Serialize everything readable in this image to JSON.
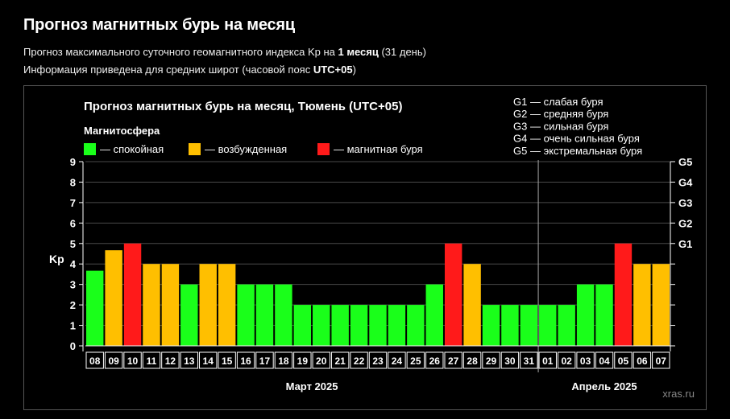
{
  "page": {
    "title": "Прогноз магнитных бурь на месяц",
    "info1_pre": "Прогноз максимального суточного геомагнитного индекса Kp на ",
    "info1_bold": "1 месяц",
    "info1_post": " (31 день)",
    "info2_pre": "Информация приведена для средних широт (часовой пояс ",
    "info2_bold": "UTC+05",
    "info2_post": ")"
  },
  "chart_data": {
    "type": "bar",
    "title": "Прогноз магнитных бурь на месяц, Тюмень (UTC+05)",
    "legend_title": "Магнитосфера",
    "legend": [
      {
        "key": "calm",
        "label": "— спокойная",
        "color": "#1aff1a"
      },
      {
        "key": "excited",
        "label": "— возбужденная",
        "color": "#ffbf00"
      },
      {
        "key": "storm",
        "label": "— магнитная буря",
        "color": "#ff1a1a"
      }
    ],
    "g_scale": [
      "G1 — слабая буря",
      "G2 — средняя буря",
      "G3 — сильная буря",
      "G4 — очень сильная буря",
      "G5 — экстремальная буря"
    ],
    "ylabel": "Kp",
    "ylim": [
      0,
      9
    ],
    "yticks": [
      0,
      1,
      2,
      3,
      4,
      5,
      6,
      7,
      8,
      9
    ],
    "right_ticks": [
      {
        "label": "G1",
        "value": 5
      },
      {
        "label": "G2",
        "value": 6
      },
      {
        "label": "G3",
        "value": 7
      },
      {
        "label": "G4",
        "value": 8
      },
      {
        "label": "G5",
        "value": 9
      }
    ],
    "categories": [
      "08",
      "09",
      "10",
      "11",
      "12",
      "13",
      "14",
      "15",
      "16",
      "17",
      "18",
      "19",
      "20",
      "21",
      "22",
      "23",
      "24",
      "25",
      "26",
      "27",
      "28",
      "29",
      "30",
      "31",
      "01",
      "02",
      "03",
      "04",
      "05",
      "06",
      "07"
    ],
    "values": [
      3.67,
      4.67,
      5,
      4,
      4,
      3,
      4,
      4,
      3,
      3,
      3,
      2,
      2,
      2,
      2,
      2,
      2,
      2,
      3,
      5,
      4,
      2,
      2,
      2,
      2,
      2,
      3,
      3,
      5,
      4,
      4
    ],
    "levels": [
      "calm",
      "excited",
      "storm",
      "excited",
      "excited",
      "calm",
      "excited",
      "excited",
      "calm",
      "calm",
      "calm",
      "calm",
      "calm",
      "calm",
      "calm",
      "calm",
      "calm",
      "calm",
      "calm",
      "storm",
      "excited",
      "calm",
      "calm",
      "calm",
      "calm",
      "calm",
      "calm",
      "calm",
      "storm",
      "excited",
      "excited"
    ],
    "month_groups": [
      {
        "label": "Март 2025",
        "start": 0,
        "end": 23
      },
      {
        "label": "Апрель 2025",
        "start": 24,
        "end": 30
      }
    ],
    "grid": true,
    "watermark": "xras.ru"
  }
}
